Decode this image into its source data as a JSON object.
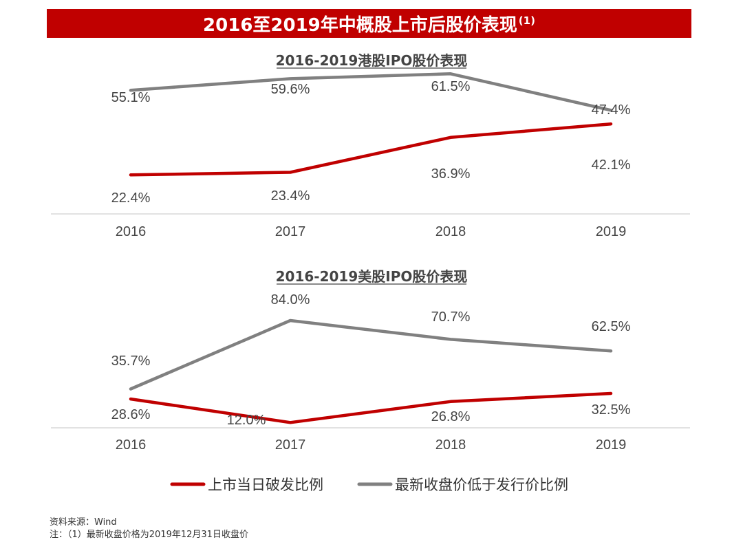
{
  "title": "2016至2019年中概股上市后股价表现",
  "title_note": "(1)",
  "colors": {
    "banner": "#c00000",
    "break_issue": "#c00000",
    "below_issue": "#808080"
  },
  "legend": [
    "上市当日破发比例",
    "最新收盘价低于发行价比例"
  ],
  "chart_data": [
    {
      "type": "line",
      "title": "2016-2019港股IPO股价表现",
      "categories": [
        "2016",
        "2017",
        "2018",
        "2019"
      ],
      "series": [
        {
          "name": "最新收盘价低于发行价比例",
          "values": [
            55.1,
            59.6,
            61.5,
            47.4
          ],
          "labels": [
            "55.1%",
            "59.6%",
            "61.5%",
            "47.4%"
          ],
          "color": "#808080"
        },
        {
          "name": "上市当日破发比例",
          "values": [
            22.4,
            23.4,
            36.9,
            42.1
          ],
          "labels": [
            "22.4%",
            "23.4%",
            "36.9%",
            "42.1%"
          ],
          "color": "#c00000"
        }
      ],
      "ylim": [
        0,
        80
      ],
      "grid": false
    },
    {
      "type": "line",
      "title": "2016-2019美股IPO股价表现",
      "categories": [
        "2016",
        "2017",
        "2018",
        "2019"
      ],
      "series": [
        {
          "name": "最新收盘价低于发行价比例",
          "values": [
            35.7,
            84.0,
            70.7,
            62.5
          ],
          "labels": [
            "35.7%",
            "84.0%",
            "70.7%",
            "62.5%"
          ],
          "color": "#808080"
        },
        {
          "name": "上市当日破发比例",
          "values": [
            28.6,
            12.0,
            26.8,
            32.5
          ],
          "labels": [
            "28.6%",
            "12.0%",
            "26.8%",
            "32.5%"
          ],
          "color": "#c00000"
        }
      ],
      "ylim": [
        0,
        110
      ],
      "grid": false
    }
  ],
  "footer": {
    "source": "资料来源：Wind",
    "note": "注：（1）最新收盘价格为2019年12月31日收盘价"
  }
}
